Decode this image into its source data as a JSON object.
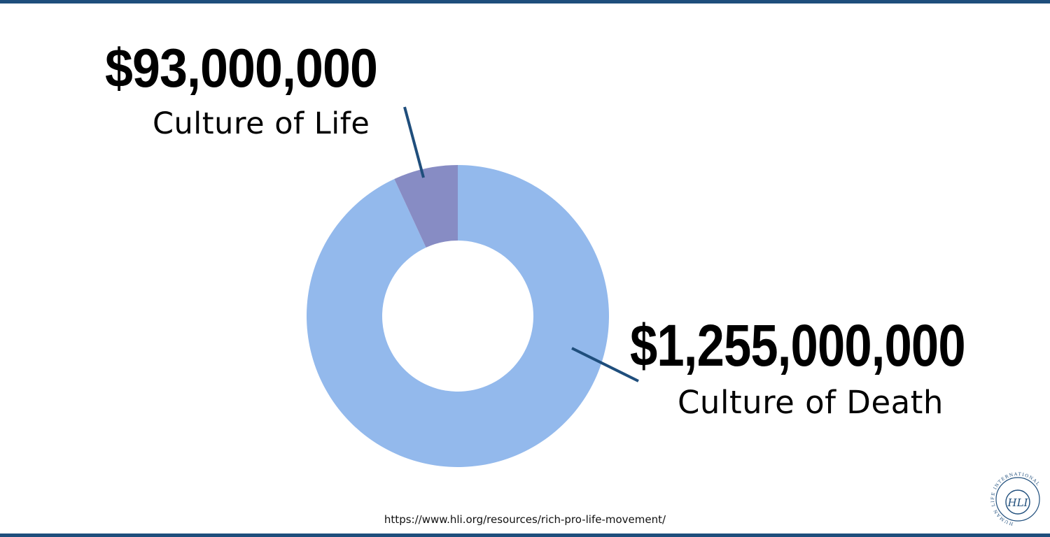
{
  "chart_data": {
    "type": "pie",
    "donut": true,
    "slices": [
      {
        "label": "Culture of Death",
        "amount_label": "$1,255,000,000",
        "value": 1255000000,
        "color": "#93b9ec"
      },
      {
        "label": "Culture of Life",
        "amount_label": "$93,000,000",
        "value": 93000000,
        "color": "#878cc4"
      }
    ],
    "leader_color": "#1f4e7c"
  },
  "source_url": "https://www.hli.org/resources/rich-pro-life-movement/",
  "logo": {
    "ring_text": "HUMAN LIFE INTERNATIONAL",
    "monogram": "HLI"
  },
  "colors": {
    "rule": "#1f4e7c",
    "text": "#000000"
  }
}
